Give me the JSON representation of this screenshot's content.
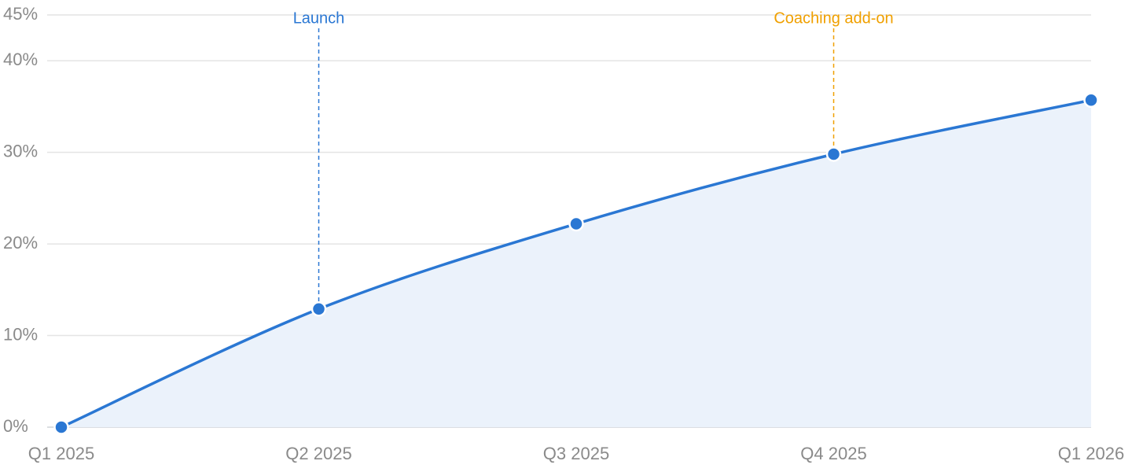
{
  "chart_data": {
    "type": "area",
    "categories": [
      "Q1 2025",
      "Q2 2025",
      "Q3 2025",
      "Q4 2025",
      "Q1 2026"
    ],
    "series": [
      {
        "color": "#2a77d3",
        "area_color": "#ebf2fb",
        "values": [
          0,
          12.9,
          22.2,
          29.8,
          35.7
        ]
      }
    ],
    "ylim": [
      0,
      45
    ],
    "yticks": [
      {
        "value": 0,
        "label": "0%"
      },
      {
        "value": 10,
        "label": "10%"
      },
      {
        "value": 20,
        "label": "20%"
      },
      {
        "value": 30,
        "label": "30%"
      },
      {
        "value": 40,
        "label": "40%"
      },
      {
        "value": 45,
        "label": "45%"
      }
    ],
    "grid": true,
    "annotations": [
      {
        "label": "Launch",
        "x": "Q2 2025",
        "color": "#2a77d3"
      },
      {
        "label": "Coaching add-on",
        "x": "Q4 2025",
        "color": "#f0a000"
      }
    ]
  }
}
